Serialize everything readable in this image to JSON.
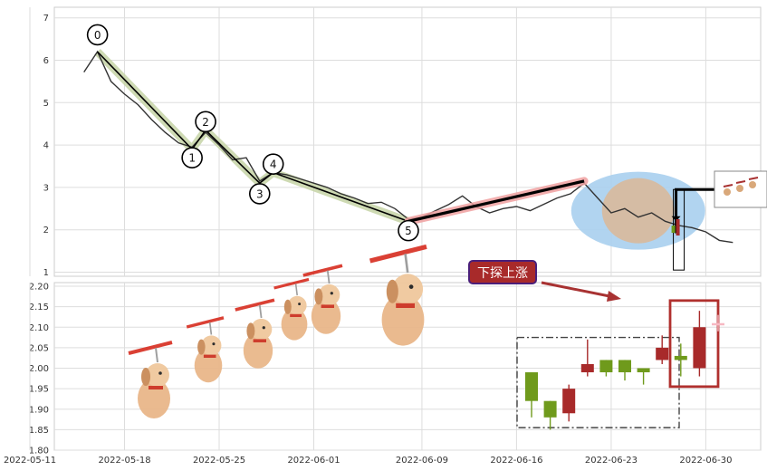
{
  "chart_data": [
    {
      "type": "line",
      "panel": "price",
      "y_ticks": [
        "1",
        "2",
        "3",
        "4",
        "5",
        "6",
        "7"
      ],
      "ylim": [
        0.9,
        7.3
      ],
      "grid": true,
      "price_series": [
        {
          "x": "2022-05-15",
          "y": 5.72
        },
        {
          "x": "2022-05-16",
          "y": 6.2
        },
        {
          "x": "2022-05-17",
          "y": 5.5
        },
        {
          "x": "2022-05-18",
          "y": 5.2
        },
        {
          "x": "2022-05-19",
          "y": 4.95
        },
        {
          "x": "2022-05-20",
          "y": 4.6
        },
        {
          "x": "2022-05-21",
          "y": 4.3
        },
        {
          "x": "2022-05-22",
          "y": 4.05
        },
        {
          "x": "2022-05-23",
          "y": 3.95
        },
        {
          "x": "2022-05-24",
          "y": 4.3
        },
        {
          "x": "2022-05-25",
          "y": 4.0
        },
        {
          "x": "2022-05-26",
          "y": 3.65
        },
        {
          "x": "2022-05-27",
          "y": 3.7
        },
        {
          "x": "2022-05-28",
          "y": 3.15
        },
        {
          "x": "2022-05-29",
          "y": 3.35
        },
        {
          "x": "2022-05-30",
          "y": 3.3
        },
        {
          "x": "2022-05-31",
          "y": 3.2
        },
        {
          "x": "2022-06-01",
          "y": 3.1
        },
        {
          "x": "2022-06-02",
          "y": 3.0
        },
        {
          "x": "2022-06-03",
          "y": 2.85
        },
        {
          "x": "2022-06-04",
          "y": 2.75
        },
        {
          "x": "2022-06-05",
          "y": 2.62
        },
        {
          "x": "2022-06-06",
          "y": 2.65
        },
        {
          "x": "2022-06-07",
          "y": 2.5
        },
        {
          "x": "2022-06-08",
          "y": 2.25
        },
        {
          "x": "2022-06-09",
          "y": 2.3
        },
        {
          "x": "2022-06-10",
          "y": 2.45
        },
        {
          "x": "2022-06-11",
          "y": 2.6
        },
        {
          "x": "2022-06-12",
          "y": 2.8
        },
        {
          "x": "2022-06-13",
          "y": 2.55
        },
        {
          "x": "2022-06-14",
          "y": 2.4
        },
        {
          "x": "2022-06-15",
          "y": 2.5
        },
        {
          "x": "2022-06-16",
          "y": 2.55
        },
        {
          "x": "2022-06-17",
          "y": 2.45
        },
        {
          "x": "2022-06-18",
          "y": 2.6
        },
        {
          "x": "2022-06-19",
          "y": 2.75
        },
        {
          "x": "2022-06-20",
          "y": 2.85
        },
        {
          "x": "2022-06-21",
          "y": 3.1
        },
        {
          "x": "2022-06-22",
          "y": 2.75
        },
        {
          "x": "2022-06-23",
          "y": 2.4
        },
        {
          "x": "2022-06-24",
          "y": 2.5
        },
        {
          "x": "2022-06-25",
          "y": 2.3
        },
        {
          "x": "2022-06-26",
          "y": 2.4
        },
        {
          "x": "2022-06-27",
          "y": 2.2
        },
        {
          "x": "2022-06-28",
          "y": 2.1
        },
        {
          "x": "2022-06-29",
          "y": 2.05
        },
        {
          "x": "2022-06-30",
          "y": 1.95
        },
        {
          "x": "2022-07-01",
          "y": 1.75
        },
        {
          "x": "2022-07-02",
          "y": 1.7
        }
      ],
      "wave_points": [
        {
          "label": "0",
          "x": "2022-05-16",
          "y": 6.2,
          "label_y": 6.6
        },
        {
          "label": "1",
          "x": "2022-05-23",
          "y": 3.9,
          "label_y": 3.7
        },
        {
          "label": "2",
          "x": "2022-05-24",
          "y": 4.35,
          "label_y": 4.55
        },
        {
          "label": "3",
          "x": "2022-05-28",
          "y": 3.1,
          "label_y": 2.85
        },
        {
          "label": "4",
          "x": "2022-05-29",
          "y": 3.35,
          "label_y": 3.55
        },
        {
          "label": "5",
          "x": "2022-06-08",
          "y": 2.2,
          "label_y": 1.98
        }
      ],
      "trend_line": {
        "x1": "2022-06-08",
        "y1": 2.2,
        "x2": "2022-06-21",
        "y2": 3.15
      }
    },
    {
      "type": "candlestick",
      "panel": "daily",
      "y_ticks": [
        "1.80",
        "1.85",
        "1.90",
        "1.95",
        "2.00",
        "2.05",
        "2.10",
        "2.15",
        "2.20"
      ],
      "ylim": [
        1.8,
        2.21
      ],
      "grid": true,
      "x_ticks": [
        "2022-05-11",
        "2022-05-18",
        "2022-05-25",
        "2022-06-01",
        "2022-06-09",
        "2022-06-16",
        "2022-06-23",
        "2022-06-30"
      ],
      "annotation": "下探上涨",
      "candles": [
        {
          "date": "2022-06-16",
          "open": 1.99,
          "close": 1.92,
          "high": 1.99,
          "low": 1.88
        },
        {
          "date": "2022-06-17",
          "open": 1.92,
          "close": 1.88,
          "high": 1.92,
          "low": 1.85
        },
        {
          "date": "2022-06-18",
          "open": 1.89,
          "close": 1.95,
          "high": 1.96,
          "low": 1.87
        },
        {
          "date": "2022-06-19",
          "open": 1.99,
          "close": 2.01,
          "high": 2.07,
          "low": 1.98
        },
        {
          "date": "2022-06-20",
          "open": 2.02,
          "close": 1.99,
          "high": 2.02,
          "low": 1.98
        },
        {
          "date": "2022-06-21",
          "open": 2.02,
          "close": 1.99,
          "high": 2.02,
          "low": 1.97
        },
        {
          "date": "2022-06-22",
          "open": 2.0,
          "close": 1.99,
          "high": 2.0,
          "low": 1.96
        },
        {
          "date": "2022-06-23",
          "open": 2.02,
          "close": 2.05,
          "high": 2.08,
          "low": 2.01
        },
        {
          "date": "2022-06-24",
          "open": 2.03,
          "close": 2.02,
          "high": 2.06,
          "low": 1.98
        },
        {
          "date": "2022-06-25",
          "open": 2.0,
          "close": 2.1,
          "high": 2.14,
          "low": 1.98
        },
        {
          "date": "2022-06-26",
          "open": 2.11,
          "close": 2.11,
          "high": 2.13,
          "low": 2.09
        }
      ]
    }
  ],
  "colors": {
    "price_line": "#333333",
    "wave_line": "#000000",
    "wave_halo": "#c5d3a6",
    "trend_line": "#000000",
    "trend_halo": "#f0a0a0",
    "highlight_ellipse": "#a9cfee",
    "inner_ellipse": "#d9b99b",
    "up_candle": "#a82a2a",
    "down_candle": "#6f9a1c",
    "faded_candle": "#f7b9c3",
    "annotation_bg": "#a82a2a",
    "annotation_border": "#4a1f7a",
    "arrow": "#a83232",
    "box_dashed": "#444444",
    "box_red": "#b0302e"
  }
}
